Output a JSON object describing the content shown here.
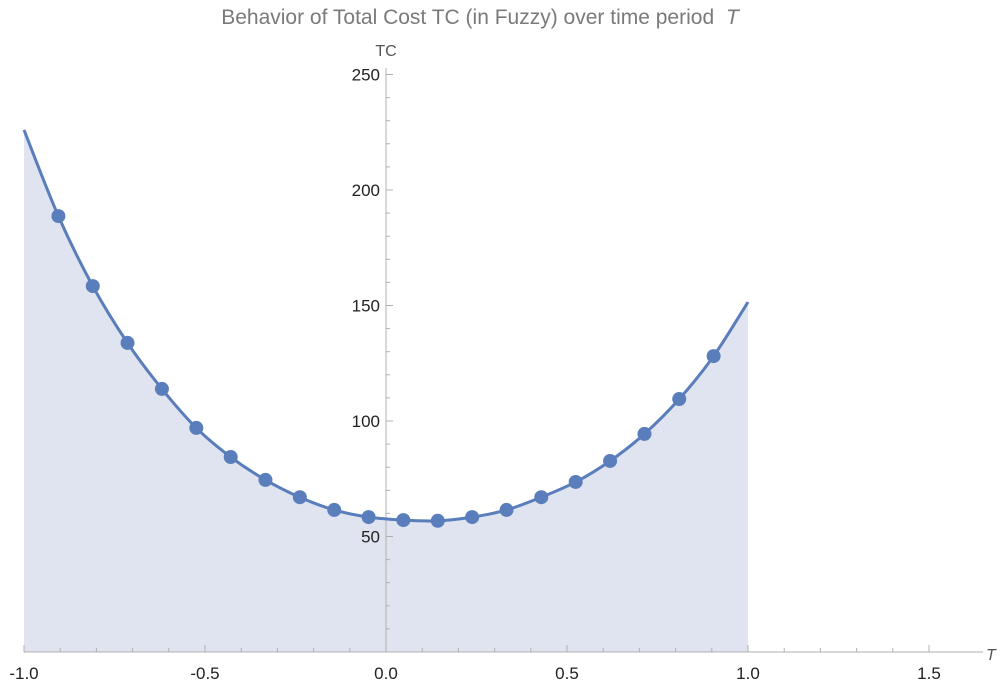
{
  "chart_data": {
    "type": "line",
    "title": "Behavior of Total Cost TC (in Fuzzy) over time period",
    "title_symbol": "T",
    "xlabel": "T",
    "ylabel": "TC",
    "xlim": [
      -1.0,
      1.6
    ],
    "ylim": [
      0,
      250
    ],
    "xticks": [
      -1.0,
      -0.5,
      0.0,
      0.5,
      1.0,
      1.5
    ],
    "xtick_labels": [
      "-1.0",
      "-0.5",
      "0.0",
      "0.5",
      "1.0",
      "1.5"
    ],
    "yticks": [
      50,
      100,
      150,
      200,
      250
    ],
    "ytick_labels": [
      "50",
      "100",
      "150",
      "200",
      "250"
    ],
    "grid": false,
    "filled": true,
    "colors": {
      "line": "#5a7dbb",
      "fill": "#dfe4f0",
      "axis": "#b0b0b0"
    },
    "curve": {
      "x": [
        -1.0,
        -0.905,
        -0.81,
        -0.714,
        -0.619,
        -0.524,
        -0.429,
        -0.333,
        -0.238,
        -0.143,
        -0.048,
        0.048,
        0.143,
        0.238,
        0.333,
        0.429,
        0.524,
        0.619,
        0.714,
        0.81,
        0.905,
        1.0
      ],
      "y": [
        226,
        188.7,
        158.4,
        133.8,
        113.9,
        97.0,
        84.4,
        74.5,
        67.0,
        61.5,
        58.4,
        57.1,
        56.8,
        58.4,
        61.5,
        67.0,
        73.6,
        82.7,
        94.4,
        109.5,
        128.1,
        151.5
      ]
    },
    "points": {
      "x": [
        -0.905,
        -0.81,
        -0.714,
        -0.619,
        -0.524,
        -0.429,
        -0.333,
        -0.238,
        -0.143,
        -0.048,
        0.048,
        0.143,
        0.238,
        0.333,
        0.429,
        0.524,
        0.619,
        0.714,
        0.81,
        0.905
      ],
      "y": [
        188.7,
        158.4,
        133.8,
        113.9,
        97.0,
        84.4,
        74.5,
        67.0,
        61.5,
        58.4,
        57.1,
        56.8,
        58.4,
        61.5,
        67.0,
        73.6,
        82.7,
        94.4,
        109.5,
        128.1
      ]
    }
  }
}
